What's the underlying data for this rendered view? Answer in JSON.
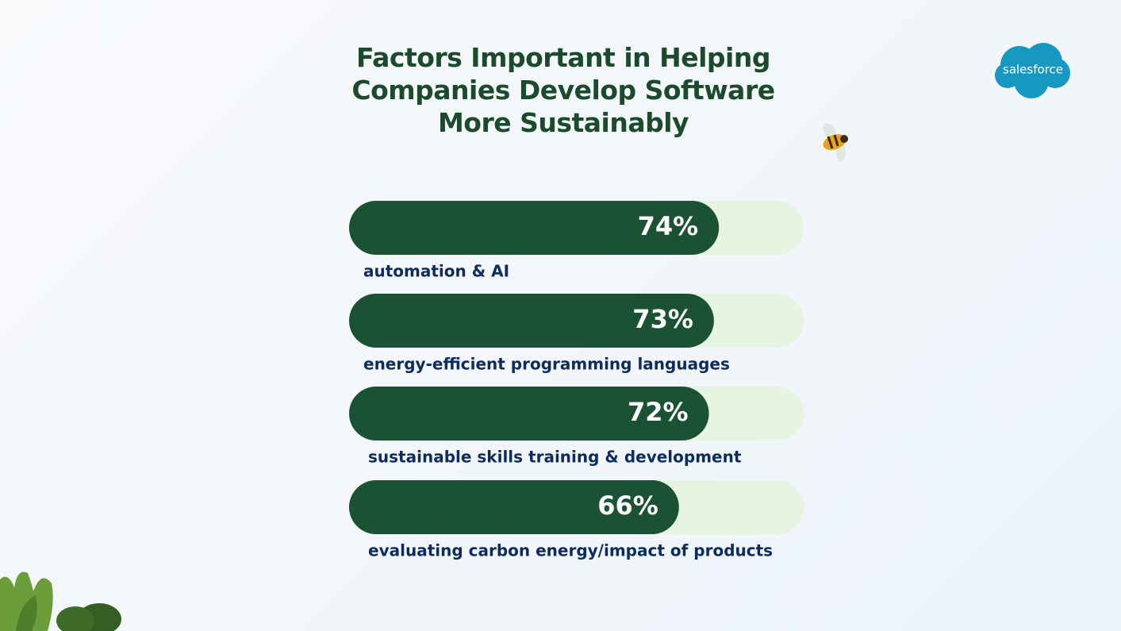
{
  "chart_data": {
    "type": "bar",
    "orientation": "horizontal",
    "title": "Factors Important in Helping Companies Develop Software More Sustainably",
    "categories": [
      "automation & AI",
      "energy-efficient programming languages",
      "sustainable skills training & development",
      "evaluating carbon energy/impact of products"
    ],
    "values": [
      74,
      73,
      72,
      66
    ],
    "value_labels": [
      "74%",
      "73%",
      "72%",
      "66%"
    ],
    "color": "#1b5233",
    "track_color": "#e6f4e2"
  },
  "logo": "salesforce"
}
